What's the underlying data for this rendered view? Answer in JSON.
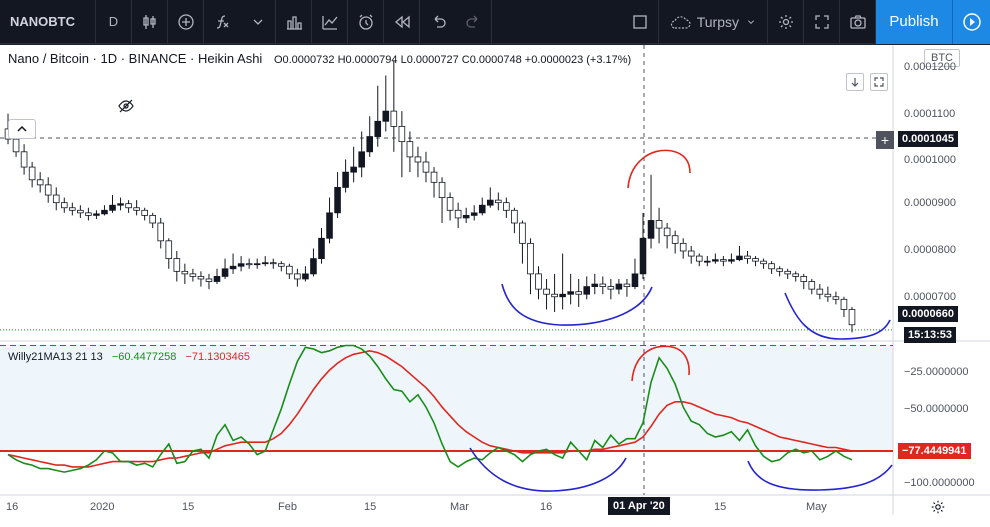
{
  "toolbar": {
    "symbol": "NANOBTC",
    "interval": "D",
    "layout_name": "Turpsy",
    "publish_label": "Publish"
  },
  "legend": {
    "title": "Nano / Bitcoin · 1D · BINANCE · Heikin Ashi",
    "open": "O0.0000732",
    "high": "H0.0000794",
    "low": "L0.0000727",
    "close": "C0.0000748",
    "change": "+0.0000023 (+3.17%)"
  },
  "indicator": {
    "name": "Willy21MA13 21 13",
    "value_green": "−60.4477258",
    "value_red": "−71.1303465",
    "current_tag": "−77.4449941"
  },
  "price_axis": {
    "currency": "BTC",
    "ticks": [
      "0.0001200",
      "0.0001100",
      "0.0001000",
      "0.0000900",
      "0.0000800",
      "0.0000700"
    ],
    "crosshair_price": "0.0001045",
    "last_price": "0.0000660",
    "countdown": "15:13:53"
  },
  "indicator_axis": {
    "ticks": [
      "−25.0000000",
      "−50.0000000",
      "−100.0000000"
    ]
  },
  "time_axis": {
    "ticks": [
      "16",
      "2020",
      "15",
      "Feb",
      "15",
      "Mar",
      "16",
      "15",
      "May"
    ],
    "crosshair_date": "01 Apr '20"
  },
  "colors": {
    "up_candle": "#ffffff",
    "down_candle": "#131722",
    "ma_line": "#e0271f",
    "willy_line": "#1b8c1b",
    "annotation_red": "#e0271f",
    "annotation_blue": "#2424d0",
    "accent": "#1e88e5"
  },
  "chart_data": {
    "type": "line",
    "price_ylim": [
      6.4e-05,
      0.000122
    ],
    "willy_ylim": [
      -105,
      -18
    ],
    "levels": {
      "upper_dashed": -20,
      "lower_solid": -80
    },
    "candles": [
      [
        0.0001035,
        0.0001055,
        0.0001085,
        0.0001025
      ],
      [
        0.000101,
        0.0001035,
        0.000105,
        0.0001
      ],
      [
        9.8e-05,
        0.000101,
        0.0001025,
        9.65e-05
      ],
      [
        9.55e-05,
        9.8e-05,
        9.9e-05,
        9.4e-05
      ],
      [
        9.45e-05,
        9.55e-05,
        9.7e-05,
        9.3e-05
      ],
      [
        9.25e-05,
        9.45e-05,
        9.6e-05,
        9.1e-05
      ],
      [
        9.1e-05,
        9.25e-05,
        9.4e-05,
        8.95e-05
      ],
      [
        9e-05,
        9.1e-05,
        9.2e-05,
        8.9e-05
      ],
      [
        8.95e-05,
        9e-05,
        9.1e-05,
        8.85e-05
      ],
      [
        8.9e-05,
        8.95e-05,
        9.05e-05,
        8.8e-05
      ],
      [
        8.85e-05,
        8.9e-05,
        9e-05,
        8.75e-05
      ],
      [
        8.88e-05,
        8.85e-05,
        8.95e-05,
        8.78e-05
      ],
      [
        8.95e-05,
        8.88e-05,
        9.05e-05,
        8.85e-05
      ],
      [
        9.05e-05,
        8.95e-05,
        9.25e-05,
        8.9e-05
      ],
      [
        9.08e-05,
        9.05e-05,
        9.2e-05,
        8.95e-05
      ],
      [
        9e-05,
        9.08e-05,
        9.15e-05,
        8.9e-05
      ],
      [
        8.95e-05,
        9e-05,
        9.15e-05,
        8.85e-05
      ],
      [
        8.85e-05,
        8.95e-05,
        9e-05,
        8.75e-05
      ],
      [
        8.7e-05,
        8.85e-05,
        8.9e-05,
        8.6e-05
      ],
      [
        8.35e-05,
        8.7e-05,
        8.8e-05,
        8.2e-05
      ],
      [
        8e-05,
        8.35e-05,
        8.4e-05,
        7.8e-05
      ],
      [
        7.75e-05,
        8e-05,
        8.15e-05,
        7.55e-05
      ],
      [
        7.7e-05,
        7.75e-05,
        7.9e-05,
        7.5e-05
      ],
      [
        7.65e-05,
        7.7e-05,
        7.8e-05,
        7.55e-05
      ],
      [
        7.6e-05,
        7.65e-05,
        7.75e-05,
        7.45e-05
      ],
      [
        7.55e-05,
        7.6e-05,
        7.7e-05,
        7.4e-05
      ],
      [
        7.65e-05,
        7.55e-05,
        7.8e-05,
        7.5e-05
      ],
      [
        7.8e-05,
        7.65e-05,
        8e-05,
        7.6e-05
      ],
      [
        7.85e-05,
        7.8e-05,
        8.1e-05,
        7.7e-05
      ],
      [
        7.9e-05,
        7.85e-05,
        8.05e-05,
        7.75e-05
      ],
      [
        7.88e-05,
        7.9e-05,
        8e-05,
        7.8e-05
      ],
      [
        7.9e-05,
        7.88e-05,
        8e-05,
        7.8e-05
      ],
      [
        7.92e-05,
        7.9e-05,
        8.05e-05,
        7.85e-05
      ],
      [
        7.9e-05,
        7.92e-05,
        8e-05,
        7.8e-05
      ],
      [
        7.85e-05,
        7.9e-05,
        7.95e-05,
        7.75e-05
      ],
      [
        7.7e-05,
        7.85e-05,
        7.9e-05,
        7.6e-05
      ],
      [
        7.6e-05,
        7.7e-05,
        7.8e-05,
        7.45e-05
      ],
      [
        7.7e-05,
        7.6e-05,
        7.85e-05,
        7.55e-05
      ],
      [
        8e-05,
        7.7e-05,
        8.2e-05,
        7.65e-05
      ],
      [
        8.4e-05,
        8e-05,
        8.6e-05,
        7.9e-05
      ],
      [
        8.9e-05,
        8.4e-05,
        9.2e-05,
        8.3e-05
      ],
      [
        9.4e-05,
        8.9e-05,
        9.7e-05,
        8.8e-05
      ],
      [
        9.7e-05,
        9.4e-05,
        9.95e-05,
        9.3e-05
      ],
      [
        9.8e-05,
        9.7e-05,
        0.000102,
        9.5e-05
      ],
      [
        0.000101,
        9.8e-05,
        0.000105,
        9.6e-05
      ],
      [
        0.000104,
        0.000101,
        0.000108,
        0.0001
      ],
      [
        0.000107,
        0.000104,
        0.000114,
        0.000102
      ],
      [
        0.000109,
        0.000107,
        0.000116,
        0.000105
      ],
      [
        0.000106,
        0.000109,
        0.000119,
        0.000101
      ],
      [
        0.000103,
        0.000106,
        0.000109,
        9.6e-05
      ],
      [
        0.0001,
        0.000103,
        0.000105,
        9.7e-05
      ],
      [
        9.9e-05,
        0.0001,
        0.000102,
        9.6e-05
      ],
      [
        9.7e-05,
        9.9e-05,
        0.000101,
        9.5e-05
      ],
      [
        9.5e-05,
        9.7e-05,
        9.8e-05,
        9.2e-05
      ],
      [
        9.2e-05,
        9.5e-05,
        9.6e-05,
        8.7e-05
      ],
      [
        8.95e-05,
        9.2e-05,
        9.3e-05,
        8.75e-05
      ],
      [
        8.8e-05,
        8.95e-05,
        9.1e-05,
        8.6e-05
      ],
      [
        8.85e-05,
        8.8e-05,
        9e-05,
        8.7e-05
      ],
      [
        8.9e-05,
        8.85e-05,
        9.05e-05,
        8.75e-05
      ],
      [
        9.05e-05,
        8.9e-05,
        9.2e-05,
        8.85e-05
      ],
      [
        9.15e-05,
        9.05e-05,
        9.4e-05,
        9e-05
      ],
      [
        9.1e-05,
        9.15e-05,
        9.3e-05,
        8.95e-05
      ],
      [
        8.95e-05,
        9.1e-05,
        9.2e-05,
        8.8e-05
      ],
      [
        8.7e-05,
        8.95e-05,
        9e-05,
        8.5e-05
      ],
      [
        8.3e-05,
        8.7e-05,
        8.75e-05,
        7.9e-05
      ],
      [
        7.7e-05,
        8.3e-05,
        8.4e-05,
        7.3e-05
      ],
      [
        7.4e-05,
        7.7e-05,
        7.85e-05,
        7.2e-05
      ],
      [
        7.3e-05,
        7.4e-05,
        7.6e-05,
        7e-05
      ],
      [
        7.25e-05,
        7.3e-05,
        7.7e-05,
        6.95e-05
      ],
      [
        7.3e-05,
        7.25e-05,
        8.1e-05,
        7e-05
      ],
      [
        7.35e-05,
        7.3e-05,
        7.7e-05,
        7.1e-05
      ],
      [
        7.3e-05,
        7.35e-05,
        7.6e-05,
        7.05e-05
      ],
      [
        7.45e-05,
        7.3e-05,
        7.65e-05,
        7.2e-05
      ],
      [
        7.5e-05,
        7.45e-05,
        7.7e-05,
        7.3e-05
      ],
      [
        7.45e-05,
        7.5e-05,
        7.65e-05,
        7.3e-05
      ],
      [
        7.4e-05,
        7.45e-05,
        7.6e-05,
        7.2e-05
      ],
      [
        7.5e-05,
        7.4e-05,
        7.6e-05,
        7.3e-05
      ],
      [
        7.45e-05,
        7.5e-05,
        7.6e-05,
        7.25e-05
      ],
      [
        7.7e-05,
        7.45e-05,
        8e-05,
        7.4e-05
      ],
      [
        8.4e-05,
        7.7e-05,
        8.9e-05,
        7.6e-05
      ],
      [
        8.75e-05,
        8.4e-05,
        9.65e-05,
        8.2e-05
      ],
      [
        8.6e-05,
        8.75e-05,
        9e-05,
        8.3e-05
      ],
      [
        8.45e-05,
        8.6e-05,
        8.7e-05,
        8.2e-05
      ],
      [
        8.3e-05,
        8.45e-05,
        8.55e-05,
        8.1e-05
      ],
      [
        8.15e-05,
        8.3e-05,
        8.4e-05,
        8e-05
      ],
      [
        8.05e-05,
        8.15e-05,
        8.25e-05,
        7.9e-05
      ],
      [
        7.95e-05,
        8.05e-05,
        8.1e-05,
        7.85e-05
      ],
      [
        7.95e-05,
        7.95e-05,
        8.05e-05,
        7.85e-05
      ],
      [
        7.98e-05,
        7.95e-05,
        8.1e-05,
        7.9e-05
      ],
      [
        7.95e-05,
        7.98e-05,
        8.05e-05,
        7.85e-05
      ],
      [
        7.98e-05,
        7.95e-05,
        8.1e-05,
        7.9e-05
      ],
      [
        8.05e-05,
        7.98e-05,
        8.25e-05,
        7.95e-05
      ],
      [
        8e-05,
        8.05e-05,
        8.15e-05,
        7.9e-05
      ],
      [
        7.95e-05,
        8e-05,
        8.05e-05,
        7.85e-05
      ],
      [
        7.9e-05,
        7.95e-05,
        8e-05,
        7.8e-05
      ],
      [
        7.8e-05,
        7.9e-05,
        7.95e-05,
        7.7e-05
      ],
      [
        7.75e-05,
        7.8e-05,
        7.85e-05,
        7.65e-05
      ],
      [
        7.7e-05,
        7.75e-05,
        7.8e-05,
        7.6e-05
      ],
      [
        7.65e-05,
        7.7e-05,
        7.75e-05,
        7.55e-05
      ],
      [
        7.55e-05,
        7.65e-05,
        7.7e-05,
        7.4e-05
      ],
      [
        7.4e-05,
        7.55e-05,
        7.6e-05,
        7.3e-05
      ],
      [
        7.3e-05,
        7.4e-05,
        7.5e-05,
        7.2e-05
      ],
      [
        7.25e-05,
        7.3e-05,
        7.45e-05,
        7.15e-05
      ],
      [
        7.2e-05,
        7.25e-05,
        7.35e-05,
        7.1e-05
      ],
      [
        7e-05,
        7.2e-05,
        7.25e-05,
        6.85e-05
      ],
      [
        6.7e-05,
        7e-05,
        7.05e-05,
        6.55e-05
      ]
    ],
    "willy": [
      -82,
      -85,
      -87,
      -88,
      -90,
      -90,
      -91,
      -92,
      -91,
      -90,
      -88,
      -85,
      -80,
      -81,
      -86,
      -86,
      -88,
      -87,
      -89,
      -82,
      -76,
      -87,
      -86,
      -80,
      -79,
      -84,
      -71,
      -65,
      -74,
      -72,
      -76,
      -82,
      -80,
      -68,
      -56,
      -42,
      -29,
      -21,
      -22,
      -24,
      -23,
      -21,
      -20,
      -20,
      -22,
      -26,
      -32,
      -39,
      -45,
      -46,
      -52,
      -48,
      -55,
      -64,
      -76,
      -86,
      -89,
      -86,
      -84,
      -85,
      -81,
      -78,
      -80,
      -82,
      -86,
      -82,
      -80,
      -79,
      -82,
      -84,
      -75,
      -80,
      -85,
      -74,
      -78,
      -71,
      -76,
      -73,
      -73,
      -64,
      -41,
      -27,
      -33,
      -42,
      -55,
      -63,
      -65,
      -70,
      -72,
      -71,
      -69,
      -74,
      -68,
      -77,
      -83,
      -86,
      -85,
      -81,
      -79,
      -81,
      -80,
      -85,
      -83,
      -80,
      -83,
      -85
    ],
    "ma": [
      -82,
      -83,
      -84,
      -85,
      -86,
      -87,
      -88,
      -88,
      -89,
      -89,
      -89,
      -88,
      -87,
      -86,
      -86,
      -86,
      -86,
      -86,
      -86,
      -85,
      -84,
      -84,
      -83,
      -82,
      -81,
      -81,
      -79,
      -77,
      -76,
      -75,
      -75,
      -75,
      -75,
      -73,
      -70,
      -65,
      -59,
      -52,
      -45,
      -39,
      -34,
      -30,
      -27,
      -25,
      -24,
      -23,
      -24,
      -26,
      -29,
      -32,
      -36,
      -40,
      -44,
      -49,
      -55,
      -60,
      -65,
      -69,
      -72,
      -75,
      -77,
      -78,
      -79,
      -80,
      -81,
      -81,
      -81,
      -81,
      -81,
      -81,
      -80,
      -80,
      -80,
      -79,
      -79,
      -78,
      -77,
      -76,
      -75,
      -72,
      -66,
      -59,
      -54,
      -52,
      -52,
      -53,
      -55,
      -57,
      -59,
      -60,
      -61,
      -63,
      -64,
      -66,
      -68,
      -70,
      -72,
      -73,
      -74,
      -75,
      -76,
      -77,
      -78,
      -78,
      -79,
      -80
    ]
  }
}
